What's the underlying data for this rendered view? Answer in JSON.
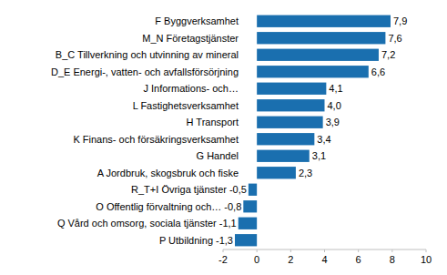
{
  "chart_data": {
    "type": "bar",
    "orientation": "horizontal",
    "categories": [
      "F Byggverksamhet",
      "M_N Företagstjänster",
      "B_C Tillverkning och utvinning av mineral",
      "D_E Energi-, vatten- och avfallsförsörjning",
      "J Informations- och…",
      "L Fastighetsverksamhet",
      "H Transport",
      "K Finans- och försäkringsverksamhet",
      "G Handel",
      "A Jordbruk, skogsbruk och fiske",
      "R_T+I Övriga tjänster",
      "O Offentlig förvaltning och…",
      "Q Vård och omsorg, sociala tjänster",
      "P Utbildning"
    ],
    "values": [
      7.9,
      7.6,
      7.2,
      6.6,
      4.1,
      4.0,
      3.9,
      3.4,
      3.1,
      2.3,
      -0.5,
      -0.8,
      -1.1,
      -1.3
    ],
    "value_labels": [
      "7,9",
      "7,6",
      "7,2",
      "6,6",
      "4,1",
      "4,0",
      "3,9",
      "3,4",
      "3,1",
      "2,3",
      "-0,5",
      "-0,8",
      "-1,1",
      "-1,3"
    ],
    "color": "#1a6faf",
    "data_labels": true,
    "grid": false,
    "xlim": [
      -2,
      10
    ],
    "xticks": [
      -2,
      0,
      2,
      4,
      6,
      8,
      10
    ]
  }
}
